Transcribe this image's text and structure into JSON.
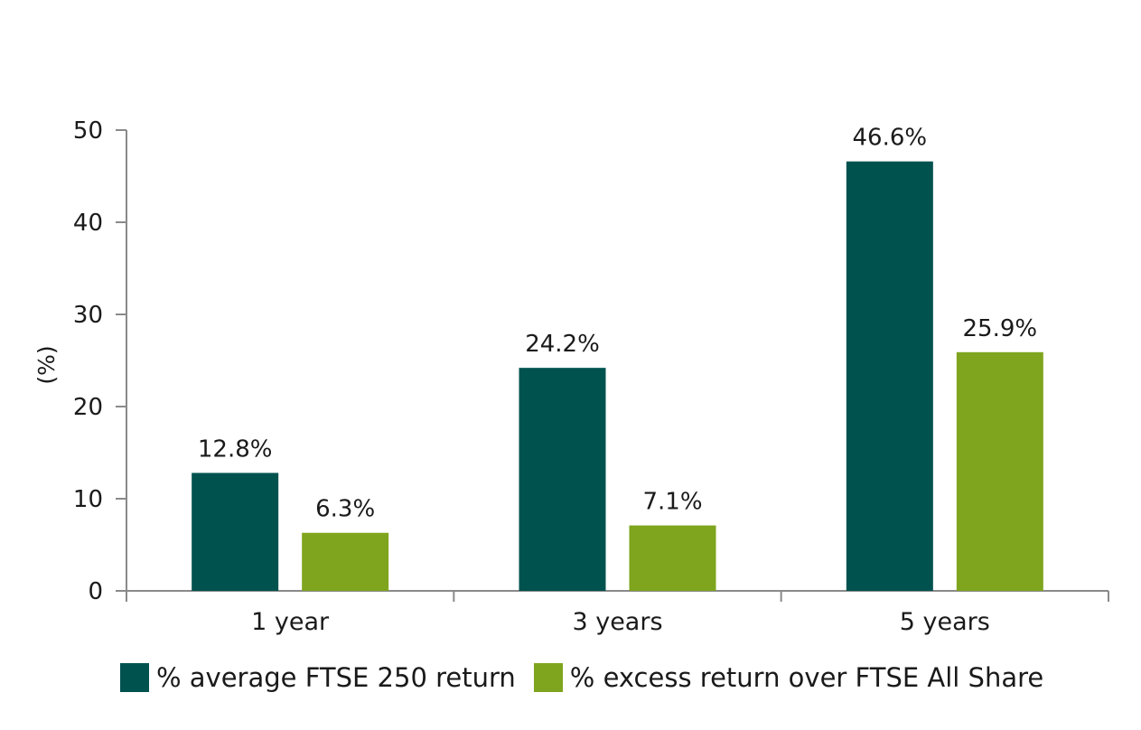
{
  "chart_data": {
    "type": "bar",
    "title": "",
    "xlabel": "",
    "ylabel": "(%)",
    "ylim": [
      0,
      50
    ],
    "yticks": [
      0,
      10,
      20,
      30,
      40,
      50
    ],
    "categories": [
      "1 year",
      "3 years",
      "5 years"
    ],
    "series": [
      {
        "name": "% average FTSE 250 return",
        "color": "#00524f",
        "values": [
          12.8,
          24.2,
          46.6
        ],
        "labels": [
          "12.8%",
          "24.2%",
          "46.6%"
        ]
      },
      {
        "name": "% excess return over FTSE All Share",
        "color": "#7fa51e",
        "values": [
          6.3,
          7.1,
          25.9
        ],
        "labels": [
          "6.3%",
          "7.1%",
          "25.9%"
        ]
      }
    ],
    "grid": false,
    "legend_position": "bottom"
  }
}
